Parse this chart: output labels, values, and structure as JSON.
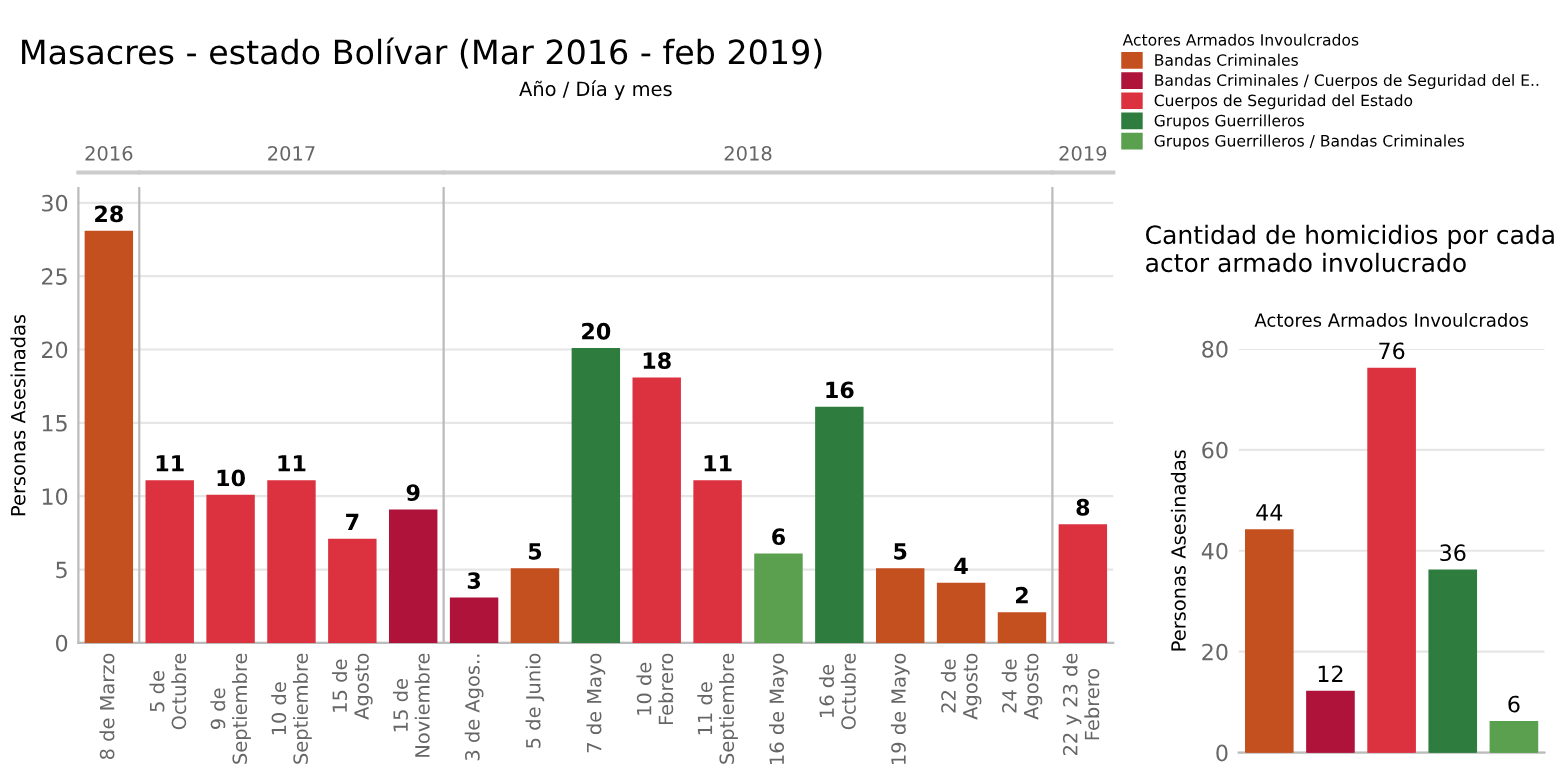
{
  "chart_data": [
    {
      "type": "bar",
      "title": "2016",
      "annotations": [
        "Masacres - estado Bolívar (Mar 2016 - feb 2019)",
        "Año / Día y mes"
      ],
      "ylabel": "Personas Asesinadas",
      "categories": [
        "8 de Marzo"
      ],
      "values": [
        28
      ],
      "colors": [
        "#c4501f"
      ],
      "ylim": [
        0,
        31
      ],
      "yticks": [
        0,
        5,
        10,
        15,
        20,
        25,
        30
      ],
      "grid": "y",
      "data_labels": true
    },
    {
      "type": "bar",
      "title": "2017",
      "categories": [
        "5 de\nOctubre",
        "9 de\nSeptiembre",
        "10 de\nSeptiembre",
        "15 de\nAgosto",
        "15 de\nNoviembre"
      ],
      "values": [
        11,
        10,
        11,
        7,
        9
      ],
      "colors": [
        "#dc3240",
        "#dc3240",
        "#dc3240",
        "#dc3240",
        "#b0133a"
      ],
      "ylim": [
        0,
        31
      ],
      "yticks": [
        0,
        5,
        10,
        15,
        20,
        25,
        30
      ],
      "grid": "y",
      "data_labels": true,
      "tick_labels": "x"
    },
    {
      "type": "bar",
      "title": "2018",
      "categories": [
        "3 de Agos..",
        "5 de Junio",
        "7 de Mayo",
        "10 de\nFebrero",
        "11 de\nSeptiembre",
        "16 de Mayo",
        "16 de\nOctubre",
        "19 de Mayo",
        "22 de\nAgosto",
        "24 de\nAgosto"
      ],
      "values": [
        3,
        5,
        20,
        18,
        11,
        6,
        16,
        5,
        4,
        2
      ],
      "colors": [
        "#b0133a",
        "#c4501f",
        "#2e7d3f",
        "#dc3240",
        "#dc3240",
        "#5aa04f",
        "#2e7d3f",
        "#c4501f",
        "#c4501f",
        "#c4501f"
      ],
      "ylim": [
        0,
        31
      ],
      "yticks": [
        0,
        5,
        10,
        15,
        20,
        25,
        30
      ],
      "grid": "y",
      "data_labels": true,
      "tick_labels": "x"
    },
    {
      "type": "bar",
      "title": "2019",
      "categories": [
        "22 y 23 de\nFebrero"
      ],
      "values": [
        8
      ],
      "colors": [
        "#dc3240"
      ],
      "ylim": [
        0,
        31
      ],
      "yticks": [
        0,
        5,
        10,
        15,
        20,
        25,
        30
      ],
      "grid": "y",
      "data_labels": true,
      "tick_labels": "x"
    },
    {
      "type": "bar",
      "title": "Cantidad de homicidios por cada actor armado involucrado",
      "subtitle": "Actores Armados Invoulcrados",
      "ylabel": "Personas Asesinadas",
      "categories": [
        null,
        null,
        null,
        null,
        null
      ],
      "series": [
        {
          "name": "Bandas Criminales",
          "color": "#c4501f",
          "values": [
            44,
            null,
            null,
            null,
            null
          ]
        },
        {
          "name": "Bandas Criminales / Cuerpos de Seguridad del E..",
          "color": "#b0133a",
          "values": [
            null,
            12,
            null,
            null,
            null
          ]
        },
        {
          "name": "Cuerpos de Seguridad del Estado",
          "color": "#dc3240",
          "values": [
            null,
            null,
            76,
            null,
            null
          ]
        },
        {
          "name": "Grupos Guerrilleros",
          "color": "#2e7d3f",
          "values": [
            null,
            null,
            null,
            36,
            null
          ]
        },
        {
          "name": "Grupos Guerrilleros / Bandas Criminales",
          "color": "#5aa04f",
          "values": [
            null,
            null,
            null,
            null,
            6
          ]
        }
      ],
      "legend": "top left",
      "legend_title": "Actores Armados Invoulcrados",
      "ylim": [
        0,
        80
      ],
      "yticks": [
        0,
        20,
        40,
        60,
        80
      ],
      "grid": "y",
      "data_labels": true
    }
  ]
}
